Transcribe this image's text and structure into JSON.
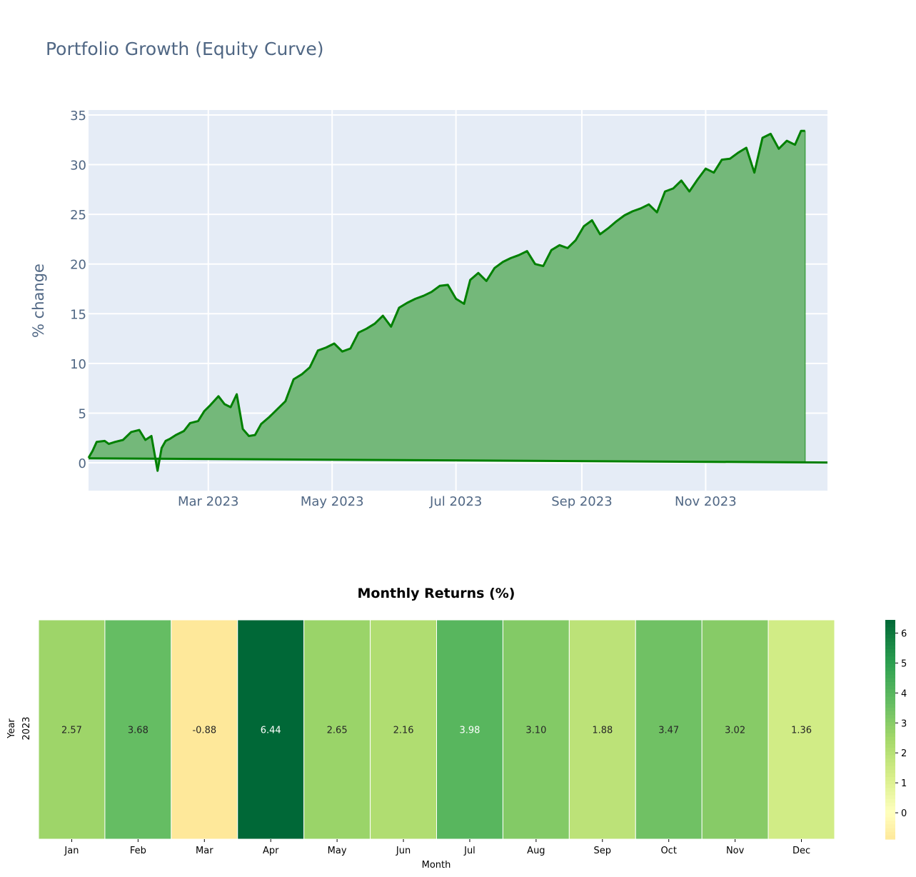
{
  "chart_data": [
    {
      "type": "area",
      "title": "Portfolio Growth (Equity Curve)",
      "xlabel": "",
      "ylabel": "% change",
      "x_tick_labels": [
        "Mar 2023",
        "May 2023",
        "Jul 2023",
        "Sep 2023",
        "Nov 2023"
      ],
      "x_ticks": [
        "2023-03-01",
        "2023-05-01",
        "2023-07-01",
        "2023-09-01",
        "2023-11-01"
      ],
      "xlim": [
        "2023-01-01",
        "2023-12-31"
      ],
      "y_ticks": [
        0,
        5,
        10,
        15,
        20,
        25,
        30,
        35
      ],
      "ylim": [
        -2.8,
        35.5
      ],
      "grid": true,
      "line_color": "#008000",
      "fill_color": "#74b87a",
      "plot_bg": "#e5ecf6",
      "series": [
        {
          "x": [
            "2023-01-01",
            "2023-01-03",
            "2023-01-05",
            "2023-01-09",
            "2023-01-11",
            "2023-01-14",
            "2023-01-18",
            "2023-01-22",
            "2023-01-26",
            "2023-01-29",
            "2023-02-01",
            "2023-02-04",
            "2023-02-06",
            "2023-02-08",
            "2023-02-10",
            "2023-02-13",
            "2023-02-17",
            "2023-02-20",
            "2023-02-24",
            "2023-02-27",
            "2023-03-02",
            "2023-03-06",
            "2023-03-09",
            "2023-03-12",
            "2023-03-15",
            "2023-03-18",
            "2023-03-21",
            "2023-03-24",
            "2023-03-27",
            "2023-03-31",
            "2023-04-04",
            "2023-04-08",
            "2023-04-12",
            "2023-04-16",
            "2023-04-20",
            "2023-04-24",
            "2023-04-28",
            "2023-05-02",
            "2023-05-06",
            "2023-05-10",
            "2023-05-14",
            "2023-05-18",
            "2023-05-22",
            "2023-05-26",
            "2023-05-30",
            "2023-06-03",
            "2023-06-07",
            "2023-06-11",
            "2023-06-15",
            "2023-06-19",
            "2023-06-23",
            "2023-06-27",
            "2023-07-01",
            "2023-07-05",
            "2023-07-08",
            "2023-07-12",
            "2023-07-16",
            "2023-07-20",
            "2023-07-24",
            "2023-07-28",
            "2023-08-01",
            "2023-08-05",
            "2023-08-09",
            "2023-08-13",
            "2023-08-17",
            "2023-08-21",
            "2023-08-25",
            "2023-08-29",
            "2023-09-02",
            "2023-09-06",
            "2023-09-10",
            "2023-09-14",
            "2023-09-18",
            "2023-09-22",
            "2023-09-26",
            "2023-09-30",
            "2023-10-04",
            "2023-10-08",
            "2023-10-12",
            "2023-10-16",
            "2023-10-20",
            "2023-10-24",
            "2023-10-28",
            "2023-11-01",
            "2023-11-05",
            "2023-11-09",
            "2023-11-13",
            "2023-11-17",
            "2023-11-21",
            "2023-11-25",
            "2023-11-29",
            "2023-12-03",
            "2023-12-07",
            "2023-12-11",
            "2023-12-15",
            "2023-12-18",
            "2023-12-20"
          ],
          "y": [
            0.5,
            1.2,
            2.1,
            2.2,
            1.9,
            2.1,
            2.3,
            3.1,
            3.3,
            2.3,
            2.7,
            -0.8,
            1.5,
            2.2,
            2.4,
            2.8,
            3.2,
            4.0,
            4.2,
            5.2,
            5.8,
            6.7,
            5.9,
            5.6,
            6.9,
            3.4,
            2.7,
            2.8,
            3.9,
            4.6,
            5.4,
            6.2,
            8.4,
            8.9,
            9.6,
            11.3,
            11.6,
            12.0,
            11.2,
            11.5,
            13.1,
            13.5,
            14.0,
            14.8,
            13.7,
            15.6,
            16.1,
            16.5,
            16.8,
            17.2,
            17.8,
            17.9,
            16.5,
            16.0,
            18.4,
            19.1,
            18.3,
            19.6,
            20.2,
            20.6,
            20.9,
            21.3,
            20.0,
            19.8,
            21.4,
            21.9,
            21.6,
            22.4,
            23.8,
            24.4,
            23.0,
            23.6,
            24.3,
            24.9,
            25.3,
            25.6,
            26.0,
            25.2,
            27.3,
            27.6,
            28.4,
            27.3,
            28.5,
            29.6,
            29.2,
            30.5,
            30.6,
            31.2,
            31.7,
            29.2,
            32.7,
            33.1,
            31.6,
            32.4,
            32.0,
            33.4,
            33.4
          ]
        }
      ]
    },
    {
      "type": "heatmap",
      "title": "Monthly Returns (%)",
      "xlabel": "Month",
      "ylabel": "Year",
      "categories": [
        "Jan",
        "Feb",
        "Mar",
        "Apr",
        "May",
        "Jun",
        "Jul",
        "Aug",
        "Sep",
        "Oct",
        "Nov",
        "Dec"
      ],
      "rows": [
        "2023"
      ],
      "values": [
        [
          2.57,
          3.68,
          -0.88,
          6.44,
          2.65,
          2.16,
          3.98,
          3.1,
          1.88,
          3.47,
          3.02,
          1.36
        ]
      ],
      "value_labels": [
        [
          "2.57",
          "3.68",
          "-0.88",
          "6.44",
          "2.65",
          "2.16",
          "3.98",
          "3.10",
          "1.88",
          "3.47",
          "3.02",
          "1.36"
        ]
      ],
      "colormap": "RdYlGn-like (yellow to green)",
      "vmin": -0.88,
      "vmax": 6.44,
      "colorbar_ticks": [
        0,
        1,
        2,
        3,
        4,
        5,
        6
      ]
    }
  ]
}
